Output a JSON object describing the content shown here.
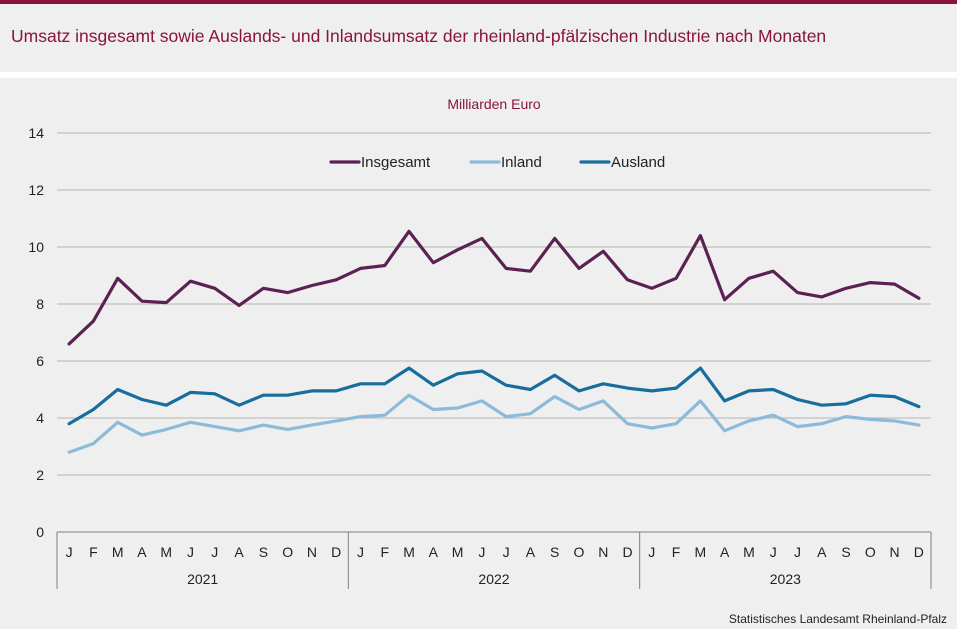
{
  "header": {
    "title": "Umsatz insgesamt sowie Auslands- und Inlandsumsatz der rheinland-pfälzischen Industrie nach Monaten"
  },
  "footer": {
    "source": "Statistisches Landesamt Rheinland-Pfalz"
  },
  "chart_data": {
    "type": "line",
    "title": "Milliarden Euro",
    "ylim": [
      0,
      14
    ],
    "yticks": [
      0,
      2,
      4,
      6,
      8,
      10,
      12,
      14
    ],
    "grid": true,
    "legend_position": "top-center",
    "months": [
      "J",
      "F",
      "M",
      "A",
      "M",
      "J",
      "J",
      "A",
      "S",
      "O",
      "N",
      "D",
      "J",
      "F",
      "M",
      "A",
      "M",
      "J",
      "J",
      "A",
      "S",
      "O",
      "N",
      "D",
      "J",
      "F",
      "M",
      "A",
      "M",
      "J",
      "J",
      "A",
      "S",
      "O",
      "N",
      "D"
    ],
    "years": [
      "2021",
      "2022",
      "2023"
    ],
    "series": [
      {
        "name": "Insgesamt",
        "color": "#5b2153",
        "values": [
          6.6,
          7.4,
          8.9,
          8.1,
          8.05,
          8.8,
          8.55,
          7.95,
          8.55,
          8.4,
          8.65,
          8.85,
          9.25,
          9.35,
          10.55,
          9.45,
          9.9,
          10.3,
          9.25,
          9.15,
          10.3,
          9.25,
          9.85,
          8.85,
          8.55,
          8.9,
          10.4,
          8.15,
          8.9,
          9.15,
          8.4,
          8.25,
          8.55,
          8.75,
          8.7,
          8.2
        ]
      },
      {
        "name": "Inland",
        "color": "#8bbbd9",
        "values": [
          2.8,
          3.1,
          3.85,
          3.4,
          3.6,
          3.85,
          3.7,
          3.55,
          3.75,
          3.6,
          3.75,
          3.9,
          4.05,
          4.1,
          4.8,
          4.3,
          4.35,
          4.6,
          4.05,
          4.15,
          4.75,
          4.3,
          4.6,
          3.8,
          3.65,
          3.8,
          4.6,
          3.55,
          3.9,
          4.1,
          3.7,
          3.8,
          4.05,
          3.95,
          3.9,
          3.75
        ]
      },
      {
        "name": "Ausland",
        "color": "#176d9c",
        "values": [
          3.8,
          4.3,
          5.0,
          4.65,
          4.45,
          4.9,
          4.85,
          4.45,
          4.8,
          4.8,
          4.95,
          4.95,
          5.2,
          5.2,
          5.75,
          5.15,
          5.55,
          5.65,
          5.15,
          5.0,
          5.5,
          4.95,
          5.2,
          5.05,
          4.95,
          5.05,
          5.75,
          4.6,
          4.95,
          5.0,
          4.65,
          4.45,
          4.5,
          4.8,
          4.75,
          4.4
        ]
      }
    ]
  }
}
